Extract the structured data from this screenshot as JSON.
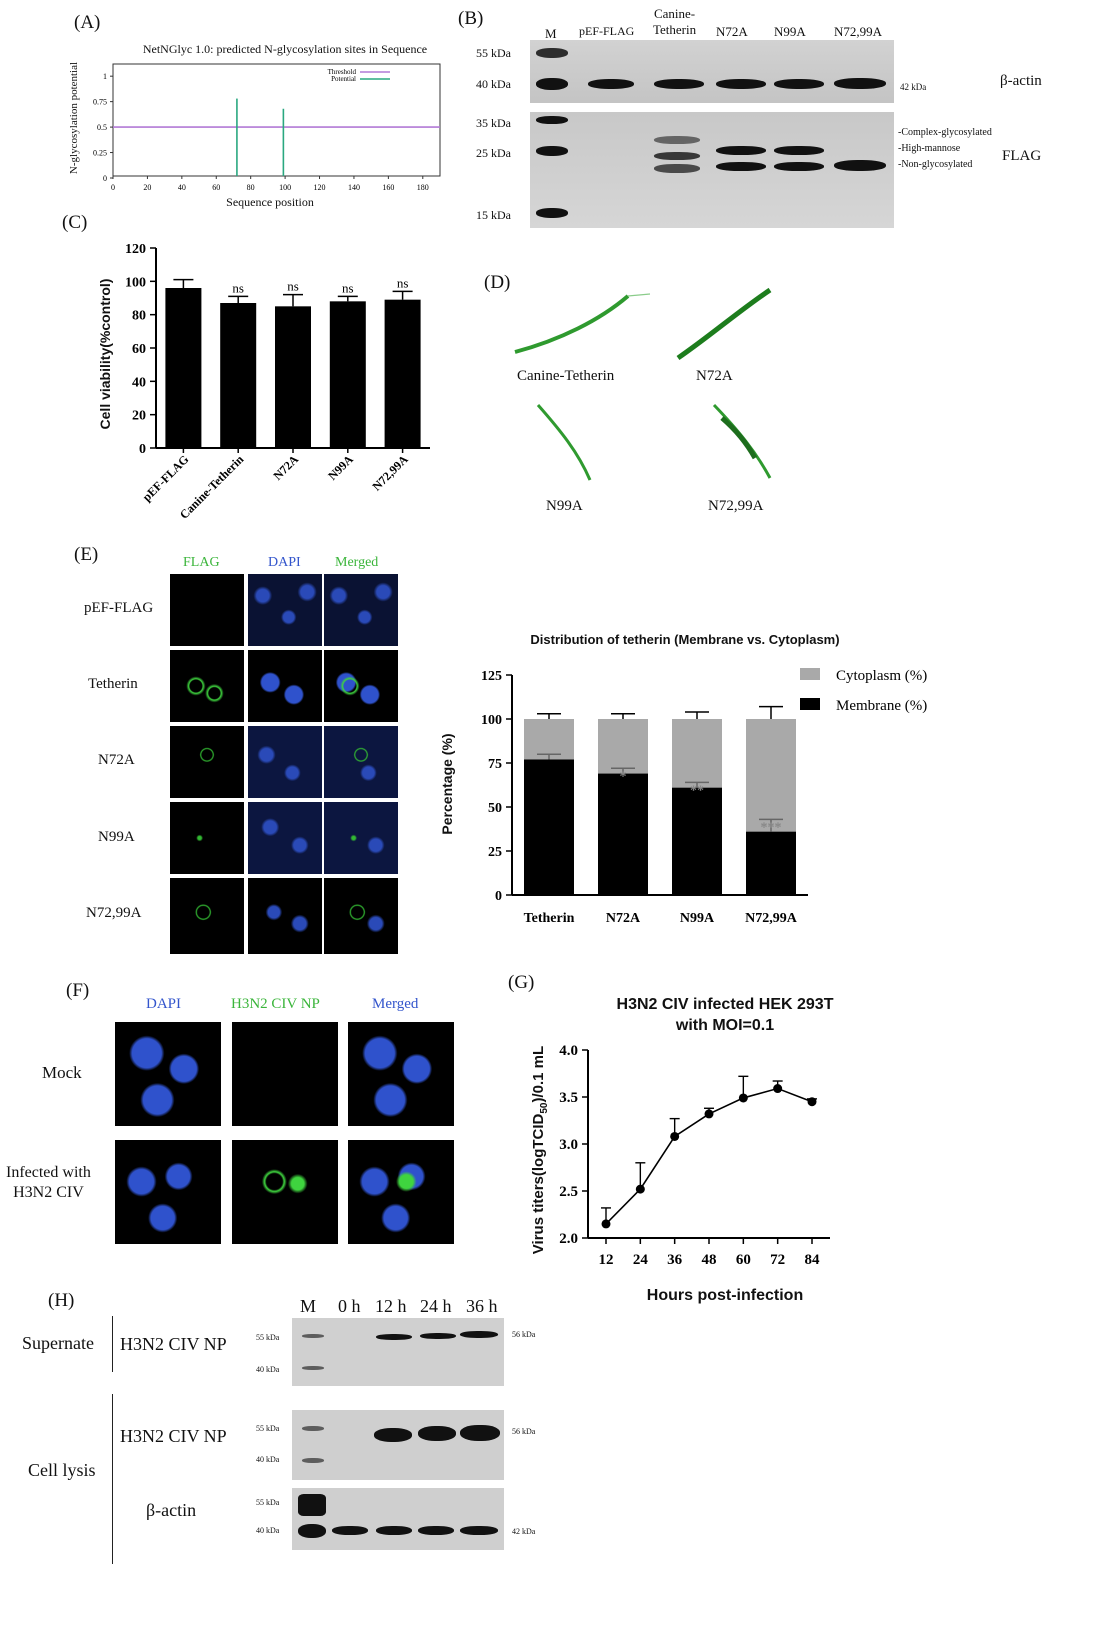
{
  "panels": {
    "A": {
      "label": "(A)",
      "title": "NetNGlyc 1.0: predicted N-glycosylation sites in Sequence",
      "ylabel": "N-glycosylation potential",
      "xlabel": "Sequence position",
      "legend": [
        "Threshold",
        "Potential"
      ],
      "xticks": [
        "0",
        "20",
        "40",
        "60",
        "80",
        "100",
        "120",
        "140",
        "160",
        "180"
      ],
      "yticks": [
        "0",
        "0.25",
        "0.5",
        "0.75",
        "1"
      ],
      "threshold": 0.5,
      "sites": [
        {
          "pos": 72,
          "value": 0.78
        },
        {
          "pos": 99,
          "value": 0.68
        }
      ],
      "colors": {
        "threshold": "#b27ad6",
        "potential": "#2aa880"
      }
    },
    "B": {
      "label": "(B)",
      "lanes": [
        "M",
        "pEF-FLAG",
        "Canine-\nTetherin",
        "N72A",
        "N99A",
        "N72,99A"
      ],
      "top_markers": [
        "55 kDa",
        "40 kDa"
      ],
      "bottom_markers": [
        "35 kDa",
        "25 kDa",
        "15 kDa"
      ],
      "actin_size": "42 kDa",
      "actin_label": "β-actin",
      "flag_label": "FLAG",
      "band_notes": [
        "-Complex-glycosylated",
        "-High-mannose",
        "-Non-glycosylated"
      ]
    },
    "C": {
      "label": "(C)",
      "ylabel": "Cell viability(%control)",
      "yticks": [
        "0",
        "20",
        "40",
        "60",
        "80",
        "100",
        "120"
      ],
      "ns_label": "ns"
    },
    "D": {
      "label": "(D)",
      "structures": [
        "Canine-Tetherin",
        "N72A",
        "N99A",
        "N72,99A"
      ]
    },
    "E": {
      "label": "(E)",
      "columns": [
        "FLAG",
        "DAPI",
        "Merged"
      ],
      "rows": [
        "pEF-FLAG",
        "Tetherin",
        "N72A",
        "N99A",
        "N72,99A"
      ],
      "chart_title": "Distribution of tetherin (Membrane vs. Cytoplasm)",
      "ylabel": "Percentage (%)",
      "yticks": [
        "0",
        "25",
        "50",
        "75",
        "100",
        "125"
      ],
      "legend": [
        "Cytoplasm (%)",
        "Membrane (%)"
      ],
      "colors": {
        "cytoplasm": "#a9a9a9",
        "membrane": "#000000"
      }
    },
    "F": {
      "label": "(F)",
      "columns": [
        "DAPI",
        "H3N2 CIV NP",
        "Merged"
      ],
      "rows": [
        "Mock",
        "Infected with\nH3N2 CIV"
      ]
    },
    "G": {
      "label": "(G)",
      "title": "H3N2 CIV infected HEK 293T\nwith MOI=0.1",
      "ylabel_prefix": "Virus titers(logTCID",
      "ylabel_sub": "50",
      "ylabel_suffix": ")/0.1 mL",
      "xlabel": "Hours post-infection",
      "yticks": [
        "2.0",
        "2.5",
        "3.0",
        "3.5",
        "4.0"
      ]
    },
    "H": {
      "label": "(H)",
      "lanes": [
        "M",
        "0 h",
        "12 h",
        "24 h",
        "36 h"
      ],
      "groups": [
        "Supernate",
        "Cell lysis"
      ],
      "np_label": "H3N2 CIV NP",
      "actin_label": "β-actin",
      "markers": [
        "55 kDa",
        "40 kDa"
      ],
      "np_size": "56 kDa",
      "actin_size": "42 kDa"
    }
  },
  "chart_data": [
    {
      "type": "bar",
      "panel": "C",
      "categories": [
        "pEF-FLAG",
        "Canine-Tetherin",
        "N72A",
        "N99A",
        "N72,99A"
      ],
      "values": [
        96,
        87,
        85,
        88,
        89
      ],
      "errors": [
        5,
        4,
        7,
        3,
        5
      ],
      "significance": [
        "",
        "ns",
        "ns",
        "ns",
        "ns"
      ],
      "ylabel": "Cell viability(%control)",
      "ylim": [
        0,
        120
      ]
    },
    {
      "type": "bar",
      "panel": "E",
      "stacked": true,
      "title": "Distribution of tetherin (Membrane vs. Cytoplasm)",
      "categories": [
        "Tetherin",
        "N72A",
        "N99A",
        "N72,99A"
      ],
      "series": [
        {
          "name": "Membrane (%)",
          "values": [
            77,
            69,
            61,
            36
          ],
          "errors": [
            3,
            3,
            3,
            7
          ]
        },
        {
          "name": "Cytoplasm (%)",
          "values": [
            23,
            31,
            39,
            64
          ],
          "errors": [
            3,
            3,
            4,
            7
          ]
        }
      ],
      "significance": [
        "",
        "*",
        "**",
        "***"
      ],
      "ylabel": "Percentage (%)",
      "ylim": [
        0,
        125
      ],
      "legend": "top-right"
    },
    {
      "type": "line",
      "panel": "G",
      "title": "H3N2 CIV infected HEK 293T\nwith MOI=0.1",
      "x": [
        12,
        24,
        36,
        48,
        60,
        72,
        84
      ],
      "y": [
        2.15,
        2.52,
        3.08,
        3.32,
        3.49,
        3.59,
        3.45
      ],
      "errors": [
        0.17,
        0.28,
        0.19,
        0.06,
        0.23,
        0.08,
        0.03
      ],
      "xlabel": "Hours post-infection",
      "ylim": [
        2.0,
        4.0
      ]
    }
  ]
}
